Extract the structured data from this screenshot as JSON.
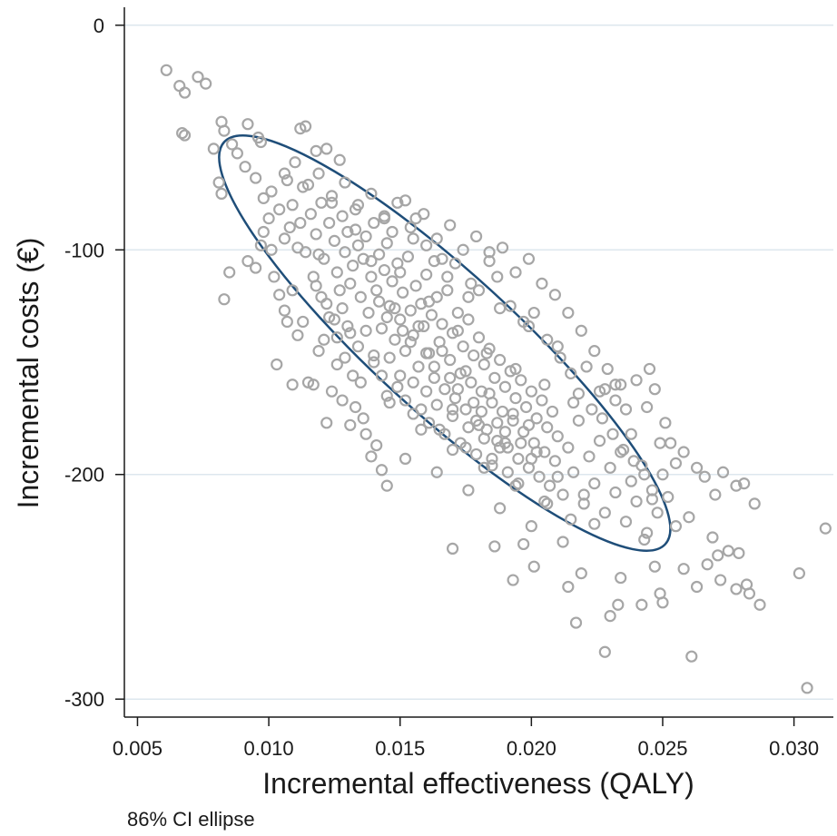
{
  "chart_data": {
    "type": "scatter",
    "xlabel": "Incremental effectiveness (QALY)",
    "ylabel": "Incremental costs (€)",
    "note": "86% CI ellipse",
    "xlim": [
      0.0045,
      0.0315
    ],
    "ylim": [
      -308,
      8
    ],
    "xticks": [
      0.005,
      0.01,
      0.015,
      0.02,
      0.025,
      0.03
    ],
    "xtick_labels": [
      "0.005",
      "0.010",
      "0.015",
      "0.020",
      "0.025",
      "0.030"
    ],
    "yticks": [
      0,
      -100,
      -200,
      -300
    ],
    "ytick_labels": [
      "0",
      "-100",
      "-200",
      "-300"
    ],
    "grid": "horizontal",
    "legend": "none",
    "colors": {
      "points": "#a6a6a6",
      "ellipse": "#1f4e79",
      "grid": "#dde7ee",
      "axis": "#1a1a1a"
    },
    "ellipse": {
      "center": [
        0.0167,
        -141.5
      ],
      "confidence": 0.86,
      "extreme_points": [
        [
          0.0083,
          -52
        ],
        [
          0.0251,
          -231
        ]
      ]
    },
    "points": [
      [
        0.0061,
        -20
      ],
      [
        0.0066,
        -27
      ],
      [
        0.0068,
        -30
      ],
      [
        0.0073,
        -23
      ],
      [
        0.0076,
        -26
      ],
      [
        0.0067,
        -48
      ],
      [
        0.0068,
        -49
      ],
      [
        0.0082,
        -43
      ],
      [
        0.0083,
        -47
      ],
      [
        0.0086,
        -53
      ],
      [
        0.0088,
        -57
      ],
      [
        0.0092,
        -44
      ],
      [
        0.0096,
        -50
      ],
      [
        0.0097,
        -52
      ],
      [
        0.0079,
        -55
      ],
      [
        0.0081,
        -70
      ],
      [
        0.0082,
        -75
      ],
      [
        0.0091,
        -63
      ],
      [
        0.0095,
        -68
      ],
      [
        0.0098,
        -77
      ],
      [
        0.0101,
        -74
      ],
      [
        0.0083,
        -122
      ],
      [
        0.0085,
        -110
      ],
      [
        0.0092,
        -105
      ],
      [
        0.0095,
        -108
      ],
      [
        0.0097,
        -98
      ],
      [
        0.0102,
        -112
      ],
      [
        0.0103,
        -151
      ],
      [
        0.0107,
        -132
      ],
      [
        0.0109,
        -160
      ],
      [
        0.0112,
        -46
      ],
      [
        0.0114,
        -45
      ],
      [
        0.0118,
        -56
      ],
      [
        0.0122,
        -55
      ],
      [
        0.0127,
        -60
      ],
      [
        0.01,
        -86
      ],
      [
        0.0104,
        -82
      ],
      [
        0.0106,
        -95
      ],
      [
        0.0108,
        -90
      ],
      [
        0.0111,
        -99
      ],
      [
        0.0113,
        -72
      ],
      [
        0.0116,
        -84
      ],
      [
        0.0118,
        -93
      ],
      [
        0.012,
        -79
      ],
      [
        0.0121,
        -104
      ],
      [
        0.0123,
        -88
      ],
      [
        0.0125,
        -96
      ],
      [
        0.0126,
        -110
      ],
      [
        0.0128,
        -85
      ],
      [
        0.0129,
        -101
      ],
      [
        0.013,
        -92
      ],
      [
        0.0131,
        -115
      ],
      [
        0.0132,
        -107
      ],
      [
        0.0133,
        -82
      ],
      [
        0.0134,
        -98
      ],
      [
        0.0135,
        -121
      ],
      [
        0.0136,
        -104
      ],
      [
        0.0137,
        -94
      ],
      [
        0.0138,
        -128
      ],
      [
        0.0139,
        -112
      ],
      [
        0.014,
        -88
      ],
      [
        0.0141,
        -118
      ],
      [
        0.0142,
        -102
      ],
      [
        0.0143,
        -135
      ],
      [
        0.0144,
        -109
      ],
      [
        0.0145,
        -97
      ],
      [
        0.0146,
        -125
      ],
      [
        0.0147,
        -114
      ],
      [
        0.0148,
        -140
      ],
      [
        0.0149,
        -106
      ],
      [
        0.015,
        -131
      ],
      [
        0.0151,
        -119
      ],
      [
        0.0152,
        -145
      ],
      [
        0.0153,
        -103
      ],
      [
        0.0154,
        -127
      ],
      [
        0.0155,
        -138
      ],
      [
        0.0156,
        -116
      ],
      [
        0.0157,
        -152
      ],
      [
        0.0158,
        -124
      ],
      [
        0.0159,
        -134
      ],
      [
        0.016,
        -111
      ],
      [
        0.0161,
        -146
      ],
      [
        0.0162,
        -129
      ],
      [
        0.0163,
        -157
      ],
      [
        0.0164,
        -121
      ],
      [
        0.0165,
        -141
      ],
      [
        0.0166,
        -133
      ],
      [
        0.0167,
        -162
      ],
      [
        0.0168,
        -118
      ],
      [
        0.0169,
        -149
      ],
      [
        0.017,
        -137
      ],
      [
        0.0171,
        -166
      ],
      [
        0.0172,
        -128
      ],
      [
        0.0173,
        -155
      ],
      [
        0.0174,
        -143
      ],
      [
        0.0175,
        -171
      ],
      [
        0.0176,
        -131
      ],
      [
        0.0177,
        -159
      ],
      [
        0.0178,
        -147
      ],
      [
        0.0179,
        -176
      ],
      [
        0.018,
        -139
      ],
      [
        0.0181,
        -163
      ],
      [
        0.0182,
        -151
      ],
      [
        0.0183,
        -180
      ],
      [
        0.0184,
        -144
      ],
      [
        0.0185,
        -168
      ],
      [
        0.0186,
        -157
      ],
      [
        0.0187,
        -185
      ],
      [
        0.0188,
        -149
      ],
      [
        0.0189,
        -172
      ],
      [
        0.019,
        -161
      ],
      [
        0.0191,
        -188
      ],
      [
        0.0192,
        -154
      ],
      [
        0.0193,
        -176
      ],
      [
        0.0194,
        -166
      ],
      [
        0.0195,
        -193
      ],
      [
        0.0196,
        -158
      ],
      [
        0.0197,
        -181
      ],
      [
        0.0198,
        -170
      ],
      [
        0.0199,
        -197
      ],
      [
        0.02,
        -163
      ],
      [
        0.0201,
        -186
      ],
      [
        0.0202,
        -175
      ],
      [
        0.0203,
        -201
      ],
      [
        0.0204,
        -167
      ],
      [
        0.0205,
        -190
      ],
      [
        0.0206,
        -179
      ],
      [
        0.0207,
        -205
      ],
      [
        0.0208,
        -172
      ],
      [
        0.0209,
        -194
      ],
      [
        0.021,
        -183
      ],
      [
        0.0212,
        -209
      ],
      [
        0.0214,
        -188
      ],
      [
        0.0216,
        -199
      ],
      [
        0.0218,
        -176
      ],
      [
        0.022,
        -213
      ],
      [
        0.0222,
        -192
      ],
      [
        0.0224,
        -204
      ],
      [
        0.0226,
        -185
      ],
      [
        0.0228,
        -217
      ],
      [
        0.023,
        -197
      ],
      [
        0.0232,
        -208
      ],
      [
        0.0234,
        -190
      ],
      [
        0.0236,
        -221
      ],
      [
        0.0238,
        -203
      ],
      [
        0.024,
        -212
      ],
      [
        0.0242,
        -196
      ],
      [
        0.0244,
        -226
      ],
      [
        0.0246,
        -207
      ],
      [
        0.0248,
        -217
      ],
      [
        0.025,
        -200
      ],
      [
        0.0252,
        -210
      ],
      [
        0.0112,
        -88
      ],
      [
        0.0119,
        -102
      ],
      [
        0.0124,
        -79
      ],
      [
        0.0127,
        -118
      ],
      [
        0.0133,
        -91
      ],
      [
        0.0139,
        -105
      ],
      [
        0.0144,
        -86
      ],
      [
        0.015,
        -110
      ],
      [
        0.0155,
        -95
      ],
      [
        0.0161,
        -123
      ],
      [
        0.0166,
        -104
      ],
      [
        0.0172,
        -136
      ],
      [
        0.0177,
        -115
      ],
      [
        0.0183,
        -146
      ],
      [
        0.0188,
        -126
      ],
      [
        0.0194,
        -153
      ],
      [
        0.0199,
        -134
      ],
      [
        0.0205,
        -160
      ],
      [
        0.021,
        -143
      ],
      [
        0.0216,
        -168
      ],
      [
        0.0221,
        -152
      ],
      [
        0.0227,
        -175
      ],
      [
        0.0232,
        -160
      ],
      [
        0.0238,
        -182
      ],
      [
        0.0244,
        -170
      ],
      [
        0.0249,
        -186
      ],
      [
        0.0121,
        -140
      ],
      [
        0.0126,
        -151
      ],
      [
        0.013,
        -134
      ],
      [
        0.0135,
        -159
      ],
      [
        0.014,
        -147
      ],
      [
        0.0145,
        -165
      ],
      [
        0.015,
        -156
      ],
      [
        0.0155,
        -173
      ],
      [
        0.016,
        -163
      ],
      [
        0.0165,
        -180
      ],
      [
        0.017,
        -171
      ],
      [
        0.0175,
        -188
      ],
      [
        0.018,
        -178
      ],
      [
        0.0185,
        -196
      ],
      [
        0.019,
        -186
      ],
      [
        0.0195,
        -204
      ],
      [
        0.02,
        -193
      ],
      [
        0.0205,
        -212
      ],
      [
        0.021,
        -201
      ],
      [
        0.0215,
        -220
      ],
      [
        0.022,
        -209
      ],
      [
        0.0136,
        -175
      ],
      [
        0.0141,
        -187
      ],
      [
        0.0146,
        -168
      ],
      [
        0.0152,
        -193
      ],
      [
        0.0158,
        -180
      ],
      [
        0.0164,
        -199
      ],
      [
        0.017,
        -189
      ],
      [
        0.0176,
        -207
      ],
      [
        0.0182,
        -197
      ],
      [
        0.0188,
        -215
      ],
      [
        0.0194,
        -205
      ],
      [
        0.02,
        -223
      ],
      [
        0.0206,
        -213
      ],
      [
        0.0212,
        -230
      ],
      [
        0.0106,
        -66
      ],
      [
        0.011,
        -61
      ],
      [
        0.0115,
        -71
      ],
      [
        0.0119,
        -66
      ],
      [
        0.0124,
        -76
      ],
      [
        0.0129,
        -70
      ],
      [
        0.0134,
        -80
      ],
      [
        0.0139,
        -75
      ],
      [
        0.0144,
        -85
      ],
      [
        0.0149,
        -79
      ],
      [
        0.0154,
        -90
      ],
      [
        0.0159,
        -84
      ],
      [
        0.0164,
        -95
      ],
      [
        0.0169,
        -89
      ],
      [
        0.0174,
        -100
      ],
      [
        0.0179,
        -94
      ],
      [
        0.0184,
        -105
      ],
      [
        0.0189,
        -99
      ],
      [
        0.0194,
        -110
      ],
      [
        0.0199,
        -104
      ],
      [
        0.0204,
        -115
      ],
      [
        0.0209,
        -120
      ],
      [
        0.0214,
        -128
      ],
      [
        0.0219,
        -136
      ],
      [
        0.0224,
        -145
      ],
      [
        0.0229,
        -153
      ],
      [
        0.0234,
        -160
      ],
      [
        0.0139,
        -192
      ],
      [
        0.0143,
        -198
      ],
      [
        0.0145,
        -205
      ],
      [
        0.017,
        -233
      ],
      [
        0.0186,
        -232
      ],
      [
        0.0193,
        -247
      ],
      [
        0.0197,
        -231
      ],
      [
        0.0201,
        -241
      ],
      [
        0.0214,
        -250
      ],
      [
        0.0217,
        -266
      ],
      [
        0.0219,
        -244
      ],
      [
        0.0224,
        -222
      ],
      [
        0.0228,
        -279
      ],
      [
        0.023,
        -263
      ],
      [
        0.0233,
        -258
      ],
      [
        0.0234,
        -246
      ],
      [
        0.0242,
        -258
      ],
      [
        0.0243,
        -229
      ],
      [
        0.0247,
        -241
      ],
      [
        0.0249,
        -253
      ],
      [
        0.025,
        -257
      ],
      [
        0.0255,
        -223
      ],
      [
        0.0258,
        -242
      ],
      [
        0.026,
        -219
      ],
      [
        0.0261,
        -281
      ],
      [
        0.0263,
        -250
      ],
      [
        0.0267,
        -240
      ],
      [
        0.0269,
        -228
      ],
      [
        0.0271,
        -236
      ],
      [
        0.0272,
        -247
      ],
      [
        0.0275,
        -234
      ],
      [
        0.0278,
        -251
      ],
      [
        0.0279,
        -235
      ],
      [
        0.0282,
        -249
      ],
      [
        0.0283,
        -253
      ],
      [
        0.0287,
        -258
      ],
      [
        0.0302,
        -244
      ],
      [
        0.0305,
        -295
      ],
      [
        0.0312,
        -224
      ],
      [
        0.0253,
        -186
      ],
      [
        0.0255,
        -195
      ],
      [
        0.0258,
        -190
      ],
      [
        0.0263,
        -197
      ],
      [
        0.0266,
        -201
      ],
      [
        0.027,
        -209
      ],
      [
        0.0273,
        -199
      ],
      [
        0.0278,
        -205
      ],
      [
        0.0281,
        -204
      ],
      [
        0.0285,
        -213
      ],
      [
        0.0245,
        -153
      ],
      [
        0.0247,
        -162
      ],
      [
        0.0251,
        -177
      ],
      [
        0.0236,
        -171
      ],
      [
        0.024,
        -158
      ],
      [
        0.0228,
        -162
      ],
      [
        0.0232,
        -167
      ],
      [
        0.0098,
        -92
      ],
      [
        0.0101,
        -100
      ],
      [
        0.0104,
        -120
      ],
      [
        0.0106,
        -127
      ],
      [
        0.0109,
        -118
      ],
      [
        0.0111,
        -138
      ],
      [
        0.0113,
        -132
      ],
      [
        0.0115,
        -159
      ],
      [
        0.0117,
        -160
      ],
      [
        0.0119,
        -145
      ],
      [
        0.0122,
        -177
      ],
      [
        0.0124,
        -163
      ],
      [
        0.0128,
        -167
      ],
      [
        0.0131,
        -178
      ],
      [
        0.0133,
        -170
      ],
      [
        0.0137,
        -182
      ],
      [
        0.0107,
        -69
      ],
      [
        0.0109,
        -80
      ],
      [
        0.0114,
        -101
      ],
      [
        0.0117,
        -112
      ],
      [
        0.012,
        -121
      ],
      [
        0.0123,
        -130
      ],
      [
        0.0126,
        -139
      ],
      [
        0.0129,
        -148
      ],
      [
        0.0132,
        -156
      ],
      [
        0.0147,
        -92
      ],
      [
        0.0152,
        -78
      ],
      [
        0.0156,
        -86
      ],
      [
        0.016,
        -98
      ],
      [
        0.0163,
        -105
      ],
      [
        0.0168,
        -112
      ],
      [
        0.0171,
        -106
      ],
      [
        0.0176,
        -121
      ],
      [
        0.018,
        -118
      ],
      [
        0.0184,
        -101
      ],
      [
        0.0187,
        -112
      ],
      [
        0.0192,
        -125
      ],
      [
        0.0197,
        -132
      ],
      [
        0.0201,
        -128
      ],
      [
        0.0206,
        -140
      ],
      [
        0.0211,
        -148
      ],
      [
        0.0215,
        -155
      ],
      [
        0.0218,
        -164
      ],
      [
        0.0223,
        -171
      ],
      [
        0.0226,
        -163
      ],
      [
        0.0231,
        -182
      ],
      [
        0.0235,
        -189
      ],
      [
        0.0239,
        -194
      ],
      [
        0.0243,
        -200
      ],
      [
        0.0246,
        -211
      ],
      [
        0.0118,
        -116
      ],
      [
        0.0122,
        -124
      ],
      [
        0.0125,
        -131
      ],
      [
        0.0128,
        -126
      ],
      [
        0.0131,
        -137
      ],
      [
        0.0134,
        -143
      ],
      [
        0.0137,
        -136
      ],
      [
        0.014,
        -150
      ],
      [
        0.0143,
        -156
      ],
      [
        0.0146,
        -148
      ],
      [
        0.0149,
        -161
      ],
      [
        0.0152,
        -167
      ],
      [
        0.0155,
        -159
      ],
      [
        0.0158,
        -171
      ],
      [
        0.0161,
        -177
      ],
      [
        0.0164,
        -169
      ],
      [
        0.0167,
        -182
      ],
      [
        0.017,
        -174
      ],
      [
        0.0173,
        -186
      ],
      [
        0.0176,
        -179
      ],
      [
        0.0179,
        -191
      ],
      [
        0.0182,
        -184
      ],
      [
        0.0185,
        -193
      ],
      [
        0.0188,
        -188
      ],
      [
        0.0191,
        -199
      ],
      [
        0.0142,
        -123
      ],
      [
        0.0145,
        -130
      ],
      [
        0.0148,
        -126
      ],
      [
        0.0151,
        -136
      ],
      [
        0.0154,
        -141
      ],
      [
        0.0157,
        -134
      ],
      [
        0.016,
        -146
      ],
      [
        0.0163,
        -152
      ],
      [
        0.0166,
        -145
      ],
      [
        0.0169,
        -157
      ],
      [
        0.0172,
        -162
      ],
      [
        0.0175,
        -154
      ],
      [
        0.0178,
        -168
      ],
      [
        0.0181,
        -172
      ],
      [
        0.0184,
        -164
      ],
      [
        0.0187,
        -177
      ],
      [
        0.019,
        -181
      ],
      [
        0.0193,
        -173
      ],
      [
        0.0196,
        -186
      ],
      [
        0.0199,
        -178
      ],
      [
        0.0202,
        -190
      ]
    ]
  }
}
